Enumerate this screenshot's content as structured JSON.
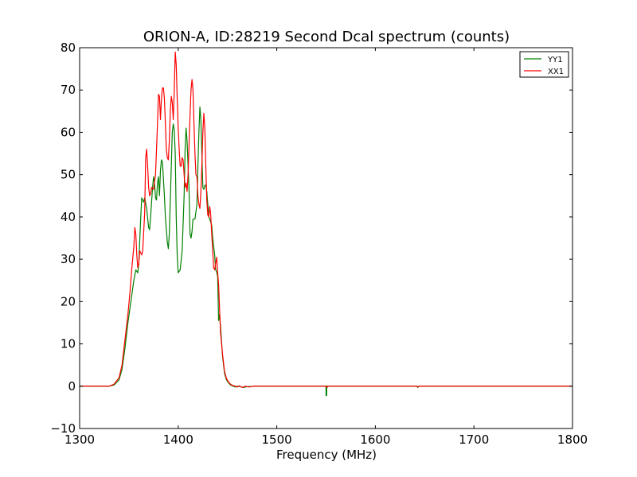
{
  "chart_data": {
    "type": "line",
    "title": "ORION-A, ID:28219 Second Dcal spectrum (counts)",
    "xlabel": "Frequency (MHz)",
    "ylabel": "",
    "xlim": [
      1300,
      1800
    ],
    "ylim": [
      -10,
      80
    ],
    "xticks": [
      1300,
      1400,
      1500,
      1600,
      1700,
      1800
    ],
    "yticks": [
      -10,
      0,
      10,
      20,
      30,
      40,
      50,
      60,
      70,
      80
    ],
    "xtick_labels": [
      "1300",
      "1400",
      "1500",
      "1600",
      "1700",
      "1800"
    ],
    "ytick_labels": [
      "−10",
      "0",
      "10",
      "20",
      "30",
      "40",
      "50",
      "60",
      "70",
      "80"
    ],
    "grid": false,
    "legend_position": "top-right",
    "series": [
      {
        "name": "YY1",
        "color": "#008000",
        "points": [
          [
            1300,
            0
          ],
          [
            1330,
            0
          ],
          [
            1335,
            0.3
          ],
          [
            1340,
            1.5
          ],
          [
            1343,
            4
          ],
          [
            1346,
            9
          ],
          [
            1349,
            15
          ],
          [
            1352,
            20
          ],
          [
            1355,
            25
          ],
          [
            1357,
            27.5
          ],
          [
            1359,
            26.8
          ],
          [
            1360,
            29
          ],
          [
            1362,
            40
          ],
          [
            1363,
            44.5
          ],
          [
            1365,
            43.5
          ],
          [
            1366,
            44.5
          ],
          [
            1368,
            42
          ],
          [
            1370,
            37.5
          ],
          [
            1371,
            37
          ],
          [
            1372,
            40
          ],
          [
            1374,
            47
          ],
          [
            1375,
            49.5
          ],
          [
            1376,
            48
          ],
          [
            1377,
            44.5
          ],
          [
            1378,
            44
          ],
          [
            1379,
            48
          ],
          [
            1380,
            49.5
          ],
          [
            1381,
            45
          ],
          [
            1382,
            51
          ],
          [
            1383,
            53.5
          ],
          [
            1384,
            53
          ],
          [
            1386,
            45
          ],
          [
            1387,
            40
          ],
          [
            1389,
            34
          ],
          [
            1390,
            32.5
          ],
          [
            1391,
            36
          ],
          [
            1393,
            52
          ],
          [
            1394,
            60
          ],
          [
            1395,
            62
          ],
          [
            1396,
            60.5
          ],
          [
            1397,
            55
          ],
          [
            1398,
            40
          ],
          [
            1399,
            31
          ],
          [
            1400,
            26.8
          ],
          [
            1402,
            27.5
          ],
          [
            1404,
            32
          ],
          [
            1406,
            45
          ],
          [
            1407,
            56
          ],
          [
            1408,
            61
          ],
          [
            1409,
            58
          ],
          [
            1411,
            46.5
          ],
          [
            1412,
            36
          ],
          [
            1413,
            35
          ],
          [
            1414,
            36.5
          ],
          [
            1415,
            39.5
          ],
          [
            1417,
            39.5
          ],
          [
            1419,
            43
          ],
          [
            1420,
            52
          ],
          [
            1421,
            60
          ],
          [
            1422,
            66
          ],
          [
            1423,
            63
          ],
          [
            1424,
            55
          ],
          [
            1425,
            47
          ],
          [
            1426,
            46.5
          ],
          [
            1427,
            47.5
          ],
          [
            1428,
            47.5
          ],
          [
            1429,
            46
          ],
          [
            1431,
            40
          ],
          [
            1432,
            39.5
          ],
          [
            1434,
            38
          ],
          [
            1435,
            35
          ],
          [
            1436,
            33
          ],
          [
            1437,
            31
          ],
          [
            1438,
            27.5
          ],
          [
            1439,
            27
          ],
          [
            1440,
            26
          ],
          [
            1441,
            15.5
          ],
          [
            1442,
            17
          ],
          [
            1443,
            14
          ],
          [
            1445,
            7
          ],
          [
            1447,
            3
          ],
          [
            1449,
            1.5
          ],
          [
            1451,
            0.8
          ],
          [
            1453,
            0.3
          ],
          [
            1456,
            0
          ],
          [
            1458,
            -0.2
          ],
          [
            1460,
            0
          ],
          [
            1463,
            -0.1
          ],
          [
            1466,
            -0.3
          ],
          [
            1470,
            -0.1
          ],
          [
            1480,
            0
          ],
          [
            1500,
            0
          ],
          [
            1548,
            0
          ],
          [
            1549.9,
            0
          ],
          [
            1550,
            -2.2
          ],
          [
            1550.6,
            -2.2
          ],
          [
            1550.7,
            0
          ],
          [
            1600,
            0
          ],
          [
            1642,
            0
          ],
          [
            1643,
            -0.3
          ],
          [
            1644,
            0
          ],
          [
            1700,
            0
          ],
          [
            1800,
            0
          ]
        ]
      },
      {
        "name": "XX1",
        "color": "#ff0000",
        "points": [
          [
            1300,
            0
          ],
          [
            1330,
            0
          ],
          [
            1335,
            0.5
          ],
          [
            1340,
            2
          ],
          [
            1343,
            5
          ],
          [
            1346,
            11
          ],
          [
            1349,
            17
          ],
          [
            1351,
            22
          ],
          [
            1353,
            28
          ],
          [
            1355,
            33
          ],
          [
            1356,
            37.5
          ],
          [
            1357,
            36
          ],
          [
            1358,
            31
          ],
          [
            1359,
            28
          ],
          [
            1360,
            29
          ],
          [
            1361,
            32
          ],
          [
            1363,
            31
          ],
          [
            1364,
            32
          ],
          [
            1366,
            41
          ],
          [
            1367,
            54
          ],
          [
            1368,
            56
          ],
          [
            1369,
            52
          ],
          [
            1370,
            47
          ],
          [
            1371,
            45
          ],
          [
            1372,
            45.5
          ],
          [
            1373,
            47
          ],
          [
            1375,
            46.5
          ],
          [
            1377,
            50
          ],
          [
            1379,
            62
          ],
          [
            1380,
            69
          ],
          [
            1381,
            68.5
          ],
          [
            1382,
            63
          ],
          [
            1383,
            68
          ],
          [
            1384,
            70.5
          ],
          [
            1385,
            70.5
          ],
          [
            1386,
            68
          ],
          [
            1387,
            62
          ],
          [
            1388,
            56
          ],
          [
            1389,
            54
          ],
          [
            1390,
            53.5
          ],
          [
            1391,
            58
          ],
          [
            1392,
            65
          ],
          [
            1393,
            68.5
          ],
          [
            1394,
            67
          ],
          [
            1395,
            63
          ],
          [
            1396,
            70
          ],
          [
            1397,
            79
          ],
          [
            1398,
            76
          ],
          [
            1399,
            68
          ],
          [
            1400,
            61
          ],
          [
            1401,
            56
          ],
          [
            1402,
            52
          ],
          [
            1403,
            52
          ],
          [
            1404,
            54
          ],
          [
            1405,
            53.5
          ],
          [
            1406,
            50
          ],
          [
            1407,
            47
          ],
          [
            1408,
            48
          ],
          [
            1409,
            46
          ],
          [
            1410,
            50
          ],
          [
            1411,
            57
          ],
          [
            1412,
            64
          ],
          [
            1413,
            70
          ],
          [
            1414,
            72.5
          ],
          [
            1415,
            70
          ],
          [
            1416,
            62
          ],
          [
            1417,
            55
          ],
          [
            1418,
            50
          ],
          [
            1419,
            49.5
          ],
          [
            1420,
            45
          ],
          [
            1421,
            43
          ],
          [
            1422,
            42
          ],
          [
            1423,
            46
          ],
          [
            1424,
            52
          ],
          [
            1425,
            60
          ],
          [
            1426,
            64.5
          ],
          [
            1427,
            61
          ],
          [
            1428,
            52
          ],
          [
            1429,
            44
          ],
          [
            1430,
            40.5
          ],
          [
            1431,
            40
          ],
          [
            1432,
            42.5
          ],
          [
            1433,
            40.5
          ],
          [
            1434,
            36
          ],
          [
            1435,
            32
          ],
          [
            1436,
            28
          ],
          [
            1437,
            27.5
          ],
          [
            1438,
            29
          ],
          [
            1439,
            30.5
          ],
          [
            1440,
            27
          ],
          [
            1441,
            24
          ],
          [
            1442,
            18
          ],
          [
            1443,
            12.5
          ],
          [
            1445,
            7.5
          ],
          [
            1447,
            3.5
          ],
          [
            1449,
            1.8
          ],
          [
            1451,
            1
          ],
          [
            1453,
            0.5
          ],
          [
            1455,
            0.2
          ],
          [
            1458,
            0
          ],
          [
            1460,
            -0.2
          ],
          [
            1462,
            0.1
          ],
          [
            1465,
            -0.3
          ],
          [
            1468,
            0
          ],
          [
            1472,
            -0.2
          ],
          [
            1476,
            0
          ],
          [
            1500,
            0
          ],
          [
            1550,
            0
          ],
          [
            1551,
            -0.3
          ],
          [
            1552,
            0
          ],
          [
            1600,
            0
          ],
          [
            1642,
            0
          ],
          [
            1643,
            -0.2
          ],
          [
            1644,
            0
          ],
          [
            1700,
            0
          ],
          [
            1800,
            0
          ]
        ]
      }
    ]
  }
}
